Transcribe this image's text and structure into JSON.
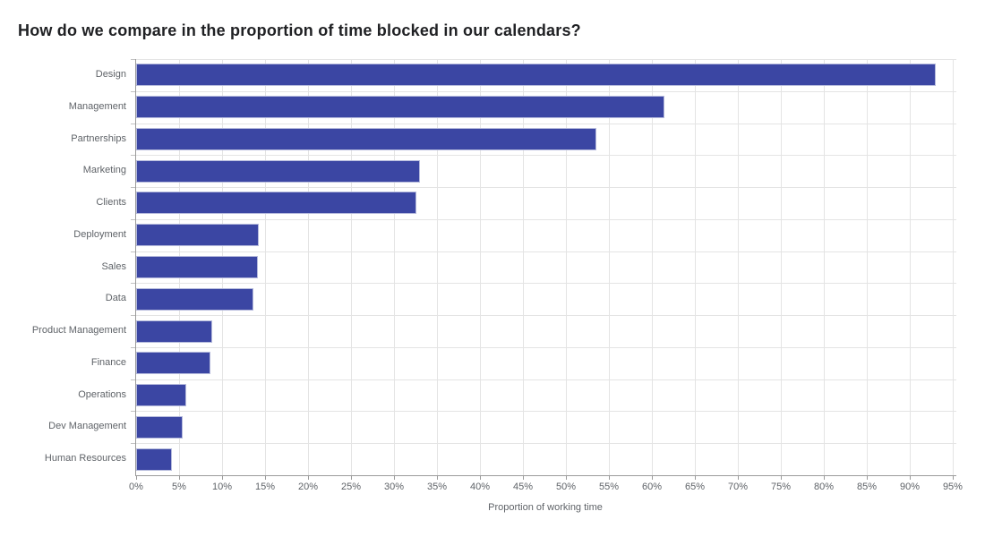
{
  "title": "How do we compare in the proportion of time blocked in our calendars?",
  "chart_data": {
    "type": "bar",
    "orientation": "horizontal",
    "title": "How do we compare in the proportion of time blocked in our calendars?",
    "categories": [
      "Design",
      "Management",
      "Partnerships",
      "Marketing",
      "Clients",
      "Deployment",
      "Sales",
      "Data",
      "Product Management",
      "Finance",
      "Operations",
      "Dev Management",
      "Human Resources"
    ],
    "values": [
      93,
      61.5,
      53.5,
      33,
      32.6,
      14.3,
      14.2,
      13.6,
      8.9,
      8.6,
      5.8,
      5.4,
      4.2
    ],
    "value_unit": "%",
    "xlabel": "Proportion of working time",
    "ylabel": "",
    "xlim": [
      0,
      95.42
    ],
    "grid": true,
    "legend": false,
    "bar_color": "#3B46A3",
    "bar_border_color": "#B5BADC",
    "x_axis": {
      "label": "Proportion of working time",
      "ticks": [
        {
          "value": 0,
          "label": "0%"
        },
        {
          "value": 5,
          "label": "5%"
        },
        {
          "value": 10,
          "label": "10%"
        },
        {
          "value": 15,
          "label": "15%"
        },
        {
          "value": 20,
          "label": "20%"
        },
        {
          "value": 25,
          "label": "25%"
        },
        {
          "value": 30,
          "label": "30%"
        },
        {
          "value": 35,
          "label": "35%"
        },
        {
          "value": 40,
          "label": "40%"
        },
        {
          "value": 45,
          "label": "45%"
        },
        {
          "value": 50,
          "label": "50%"
        },
        {
          "value": 55,
          "label": "55%"
        },
        {
          "value": 60,
          "label": "60%"
        },
        {
          "value": 65,
          "label": "65%"
        },
        {
          "value": 70,
          "label": "70%"
        },
        {
          "value": 75,
          "label": "75%"
        },
        {
          "value": 80,
          "label": "80%"
        },
        {
          "value": 85,
          "label": "85%"
        },
        {
          "value": 90,
          "label": "90%"
        },
        {
          "value": 95,
          "label": "95%"
        }
      ]
    }
  }
}
